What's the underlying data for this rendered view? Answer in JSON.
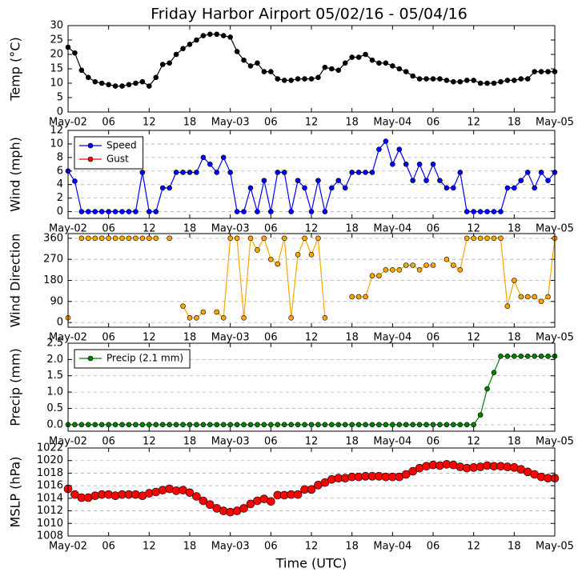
{
  "title": "Friday Harbor Airport 05/02/16 - 05/04/16",
  "chart_data": [
    {
      "type": "line",
      "ylabel": "Temp (°C)",
      "grid": false,
      "x": [
        0,
        1,
        2,
        3,
        4,
        5,
        6,
        7,
        8,
        9,
        10,
        11,
        12,
        13,
        14,
        15,
        16,
        17,
        18,
        19,
        20,
        21,
        22,
        23,
        24,
        25,
        26,
        27,
        28,
        29,
        30,
        31,
        32,
        33,
        34,
        35,
        36,
        37,
        38,
        39,
        40,
        41,
        42,
        43,
        44,
        45,
        46,
        47,
        48,
        49,
        50,
        51,
        52,
        53,
        54,
        55,
        56,
        57,
        58,
        59,
        60,
        61,
        62,
        63,
        64,
        65,
        66,
        67,
        68,
        69,
        70,
        71,
        72
      ],
      "xlim": [
        0,
        72
      ],
      "xticks": [
        {
          "value": 0,
          "label": "May-02"
        },
        {
          "value": 6,
          "label": "06"
        },
        {
          "value": 12,
          "label": "12"
        },
        {
          "value": 18,
          "label": "18"
        },
        {
          "value": 24,
          "label": "May-03"
        },
        {
          "value": 30,
          "label": "06"
        },
        {
          "value": 36,
          "label": "12"
        },
        {
          "value": 42,
          "label": "18"
        },
        {
          "value": 48,
          "label": "May-04"
        },
        {
          "value": 54,
          "label": "06"
        },
        {
          "value": 60,
          "label": "12"
        },
        {
          "value": 66,
          "label": "18"
        },
        {
          "value": 72,
          "label": "May-05"
        }
      ],
      "ylim": [
        0,
        30
      ],
      "yticks": [
        0,
        5,
        10,
        15,
        20,
        25,
        30
      ],
      "series": [
        {
          "color": "#000000",
          "values": [
            22.5,
            20.5,
            14.5,
            12,
            10.5,
            10,
            9.5,
            9,
            9,
            9.5,
            10,
            10.5,
            9,
            12,
            16.5,
            17,
            20,
            22,
            23.5,
            25,
            26.5,
            27,
            27,
            26.5,
            26,
            21,
            18,
            16,
            17,
            14,
            14,
            11.5,
            11,
            11,
            11.5,
            11.5,
            11.5,
            12,
            15.5,
            15,
            14.5,
            17,
            19,
            19,
            20,
            18,
            17,
            17,
            16,
            15,
            14,
            12.5,
            11.5,
            11.5,
            11.5,
            11.5,
            11,
            10.5,
            10.5,
            11,
            11,
            10,
            10,
            10,
            10.5,
            11,
            11,
            11.5,
            11.5,
            14,
            14,
            14,
            14
          ]
        }
      ]
    },
    {
      "type": "line",
      "ylabel": "Wind (mph)",
      "grid": true,
      "legend": "upper left",
      "x": [
        0,
        1,
        2,
        3,
        4,
        5,
        6,
        7,
        8,
        9,
        10,
        11,
        12,
        13,
        14,
        15,
        16,
        17,
        18,
        19,
        20,
        21,
        22,
        23,
        24,
        25,
        26,
        27,
        28,
        29,
        30,
        31,
        32,
        33,
        34,
        35,
        36,
        37,
        38,
        39,
        40,
        41,
        42,
        43,
        44,
        45,
        46,
        47,
        48,
        49,
        50,
        51,
        52,
        53,
        54,
        55,
        56,
        57,
        58,
        59,
        60,
        61,
        62,
        63,
        64,
        65,
        66,
        67,
        68,
        69,
        70,
        71,
        72
      ],
      "xlim": [
        0,
        72
      ],
      "xticks": [
        {
          "value": 0,
          "label": "May-02"
        },
        {
          "value": 6,
          "label": "06"
        },
        {
          "value": 12,
          "label": "12"
        },
        {
          "value": 18,
          "label": "18"
        },
        {
          "value": 24,
          "label": "May-03"
        },
        {
          "value": 30,
          "label": "06"
        },
        {
          "value": 36,
          "label": "12"
        },
        {
          "value": 42,
          "label": "18"
        },
        {
          "value": 48,
          "label": "May-04"
        },
        {
          "value": 54,
          "label": "06"
        },
        {
          "value": 60,
          "label": "12"
        },
        {
          "value": 66,
          "label": "18"
        },
        {
          "value": 72,
          "label": "May-05"
        }
      ],
      "ylim": [
        -1,
        12
      ],
      "yticks": [
        0,
        2,
        4,
        6,
        8,
        10,
        12
      ],
      "series": [
        {
          "name": "Speed",
          "color": "#0000ff",
          "values": [
            6,
            4.5,
            0,
            0,
            0,
            0,
            0,
            0,
            0,
            0,
            0,
            5.8,
            0,
            0,
            3.5,
            3.5,
            5.8,
            5.8,
            5.8,
            5.8,
            8,
            7,
            5.8,
            8,
            5.8,
            0,
            0,
            3.5,
            0,
            4.6,
            0,
            5.8,
            5.8,
            0,
            4.6,
            3.5,
            0,
            4.6,
            0,
            3.5,
            4.6,
            3.5,
            5.8,
            5.8,
            5.8,
            5.8,
            9.2,
            10.4,
            7,
            9.2,
            7,
            4.6,
            7,
            4.6,
            7,
            4.6,
            3.5,
            3.5,
            5.8,
            0,
            0,
            0,
            0,
            0,
            0,
            3.5,
            3.5,
            4.6,
            5.8,
            3.5,
            5.8,
            4.6,
            5.8
          ]
        },
        {
          "name": "Gust",
          "color": "#ff0000",
          "values": [
            null,
            null,
            null,
            null,
            null,
            null,
            null,
            null,
            null,
            null,
            null,
            null,
            null,
            null,
            null,
            null,
            null,
            null,
            null,
            null,
            null,
            null,
            null,
            null,
            null,
            null,
            null,
            null,
            null,
            null,
            null,
            null,
            null,
            null,
            null,
            null,
            null,
            null,
            null,
            null,
            null,
            null,
            null,
            null,
            null,
            null,
            null,
            null,
            null,
            null,
            null,
            null,
            null,
            null,
            null,
            null,
            null,
            null,
            null,
            null,
            null,
            null,
            null,
            null,
            null,
            null,
            null,
            null,
            null,
            null,
            null,
            null,
            null
          ]
        }
      ]
    },
    {
      "type": "line",
      "ylabel": "Wind Direction",
      "grid": true,
      "x": [
        0,
        1,
        2,
        3,
        4,
        5,
        6,
        7,
        8,
        9,
        10,
        11,
        12,
        13,
        14,
        15,
        16,
        17,
        18,
        19,
        20,
        21,
        22,
        23,
        24,
        25,
        26,
        27,
        28,
        29,
        30,
        31,
        32,
        33,
        34,
        35,
        36,
        37,
        38,
        39,
        40,
        41,
        42,
        43,
        44,
        45,
        46,
        47,
        48,
        49,
        50,
        51,
        52,
        53,
        54,
        55,
        56,
        57,
        58,
        59,
        60,
        61,
        62,
        63,
        64,
        65,
        66,
        67,
        68,
        69,
        70,
        71,
        72
      ],
      "xlim": [
        0,
        72
      ],
      "xticks": [
        {
          "value": 0,
          "label": "May-02"
        },
        {
          "value": 6,
          "label": "06"
        },
        {
          "value": 12,
          "label": "12"
        },
        {
          "value": 18,
          "label": "18"
        },
        {
          "value": 24,
          "label": "May-03"
        },
        {
          "value": 30,
          "label": "06"
        },
        {
          "value": 36,
          "label": "12"
        },
        {
          "value": 42,
          "label": "18"
        },
        {
          "value": 48,
          "label": "May-04"
        },
        {
          "value": 54,
          "label": "06"
        },
        {
          "value": 60,
          "label": "12"
        },
        {
          "value": 66,
          "label": "18"
        },
        {
          "value": 72,
          "label": "May-05"
        }
      ],
      "ylim": [
        -20,
        380
      ],
      "yticks": [
        0,
        90,
        180,
        270,
        360
      ],
      "series": [
        {
          "color": "#ffa500",
          "values": [
            20,
            null,
            360,
            360,
            360,
            360,
            360,
            360,
            360,
            360,
            360,
            360,
            360,
            360,
            null,
            360,
            null,
            70,
            20,
            20,
            45,
            null,
            45,
            20,
            360,
            360,
            20,
            360,
            310,
            360,
            270,
            250,
            360,
            20,
            290,
            360,
            290,
            360,
            20,
            null,
            null,
            null,
            110,
            110,
            110,
            200,
            200,
            225,
            225,
            225,
            245,
            245,
            225,
            245,
            245,
            null,
            270,
            245,
            225,
            360,
            360,
            360,
            360,
            360,
            360,
            70,
            180,
            110,
            110,
            110,
            90,
            110,
            360
          ]
        }
      ]
    },
    {
      "type": "line",
      "ylabel": "Precip (mm)",
      "grid": true,
      "legend": "upper left",
      "x": [
        0,
        1,
        2,
        3,
        4,
        5,
        6,
        7,
        8,
        9,
        10,
        11,
        12,
        13,
        14,
        15,
        16,
        17,
        18,
        19,
        20,
        21,
        22,
        23,
        24,
        25,
        26,
        27,
        28,
        29,
        30,
        31,
        32,
        33,
        34,
        35,
        36,
        37,
        38,
        39,
        40,
        41,
        42,
        43,
        44,
        45,
        46,
        47,
        48,
        49,
        50,
        51,
        52,
        53,
        54,
        55,
        56,
        57,
        58,
        59,
        60,
        61,
        62,
        63,
        64,
        65,
        66,
        67,
        68,
        69,
        70,
        71,
        72
      ],
      "xlim": [
        0,
        72
      ],
      "xticks": [
        {
          "value": 0,
          "label": "May-02"
        },
        {
          "value": 6,
          "label": "06"
        },
        {
          "value": 12,
          "label": "12"
        },
        {
          "value": 18,
          "label": "18"
        },
        {
          "value": 24,
          "label": "May-03"
        },
        {
          "value": 30,
          "label": "06"
        },
        {
          "value": 36,
          "label": "12"
        },
        {
          "value": 42,
          "label": "18"
        },
        {
          "value": 48,
          "label": "May-04"
        },
        {
          "value": 54,
          "label": "06"
        },
        {
          "value": 60,
          "label": "12"
        },
        {
          "value": 66,
          "label": "18"
        },
        {
          "value": 72,
          "label": "May-05"
        }
      ],
      "ylim": [
        -0.2,
        2.5
      ],
      "yticks": [
        {
          "value": 0,
          "label": "0.0"
        },
        {
          "value": 0.5,
          "label": "0.5"
        },
        {
          "value": 1,
          "label": "1.0"
        },
        {
          "value": 1.5,
          "label": "1.5"
        },
        {
          "value": 2,
          "label": "2.0"
        },
        {
          "value": 2.5,
          "label": "2.5"
        }
      ],
      "series": [
        {
          "name": "Precip (2.1 mm)",
          "color": "#007f00",
          "values": [
            0,
            0,
            0,
            0,
            0,
            0,
            0,
            0,
            0,
            0,
            0,
            0,
            0,
            0,
            0,
            0,
            0,
            0,
            0,
            0,
            0,
            0,
            0,
            0,
            0,
            0,
            0,
            0,
            0,
            0,
            0,
            0,
            0,
            0,
            0,
            0,
            0,
            0,
            0,
            0,
            0,
            0,
            0,
            0,
            0,
            0,
            0,
            0,
            0,
            0,
            0,
            0,
            0,
            0,
            0,
            0,
            0,
            0,
            0,
            0,
            0,
            0.3,
            1.1,
            1.6,
            2.1,
            2.1,
            2.1,
            2.1,
            2.1,
            2.1,
            2.1,
            2.1,
            2.1
          ]
        }
      ]
    },
    {
      "type": "scatter",
      "ylabel": "MSLP (hPa)",
      "xlabel": "Time (UTC)",
      "grid": true,
      "x": [
        0,
        1,
        2,
        3,
        4,
        5,
        6,
        7,
        8,
        9,
        10,
        11,
        12,
        13,
        14,
        15,
        16,
        17,
        18,
        19,
        20,
        21,
        22,
        23,
        24,
        25,
        26,
        27,
        28,
        29,
        30,
        31,
        32,
        33,
        34,
        35,
        36,
        37,
        38,
        39,
        40,
        41,
        42,
        43,
        44,
        45,
        46,
        47,
        48,
        49,
        50,
        51,
        52,
        53,
        54,
        55,
        56,
        57,
        58,
        59,
        60,
        61,
        62,
        63,
        64,
        65,
        66,
        67,
        68,
        69,
        70,
        71,
        72
      ],
      "xlim": [
        0,
        72
      ],
      "xticks": [
        {
          "value": 0,
          "label": "May-02"
        },
        {
          "value": 6,
          "label": "06"
        },
        {
          "value": 12,
          "label": "12"
        },
        {
          "value": 18,
          "label": "18"
        },
        {
          "value": 24,
          "label": "May-03"
        },
        {
          "value": 30,
          "label": "06"
        },
        {
          "value": 36,
          "label": "12"
        },
        {
          "value": 42,
          "label": "18"
        },
        {
          "value": 48,
          "label": "May-04"
        },
        {
          "value": 54,
          "label": "06"
        },
        {
          "value": 60,
          "label": "12"
        },
        {
          "value": 66,
          "label": "18"
        },
        {
          "value": 72,
          "label": "May-05"
        }
      ],
      "ylim": [
        1008,
        1022
      ],
      "yticks": [
        1008,
        1010,
        1012,
        1014,
        1016,
        1018,
        1020,
        1022
      ],
      "series": [
        {
          "color": "#ff0000",
          "values": [
            1015.5,
            1014.6,
            1014.1,
            1014.1,
            1014.4,
            1014.6,
            1014.6,
            1014.4,
            1014.6,
            1014.6,
            1014.6,
            1014.4,
            1014.8,
            1015.0,
            1015.3,
            1015.5,
            1015.2,
            1015.3,
            1014.9,
            1014.3,
            1013.6,
            1013.0,
            1012.4,
            1012.0,
            1011.8,
            1012.0,
            1012.4,
            1013.1,
            1013.6,
            1013.9,
            1013.5,
            1014.5,
            1014.5,
            1014.6,
            1014.6,
            1015.4,
            1015.4,
            1016.1,
            1016.5,
            1017.0,
            1017.2,
            1017.2,
            1017.4,
            1017.4,
            1017.5,
            1017.5,
            1017.5,
            1017.4,
            1017.4,
            1017.4,
            1017.8,
            1018.3,
            1018.8,
            1019.1,
            1019.3,
            1019.2,
            1019.4,
            1019.3,
            1019.0,
            1018.8,
            1018.9,
            1019.0,
            1019.2,
            1019.1,
            1019.1,
            1019.0,
            1018.9,
            1018.6,
            1018.2,
            1017.8,
            1017.4,
            1017.2,
            1017.2
          ]
        }
      ]
    }
  ]
}
